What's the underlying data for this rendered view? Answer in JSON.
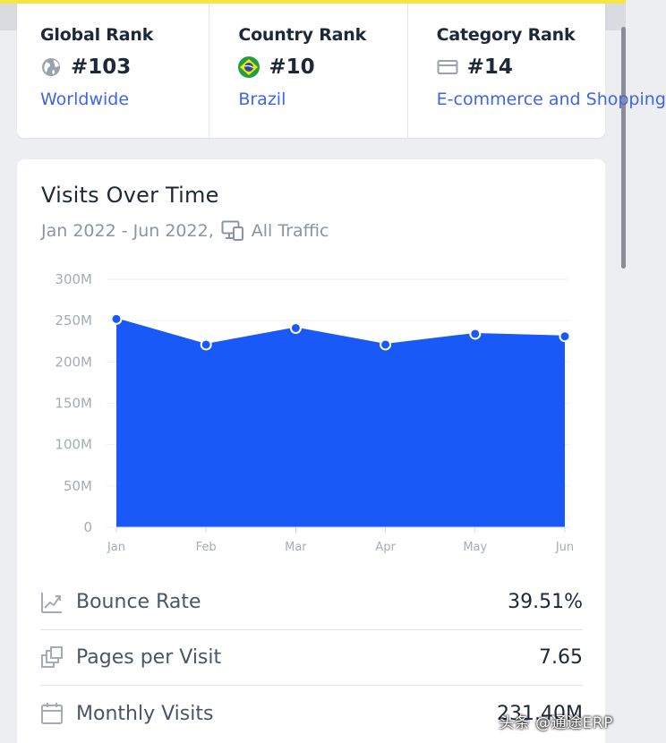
{
  "colors": {
    "accent": "#f5e642",
    "chart_fill": "#1859f7",
    "link": "#3e64f0"
  },
  "ranks": [
    {
      "title": "Global Rank",
      "icon": "globe-icon",
      "value": "#103",
      "link": "Worldwide"
    },
    {
      "title": "Country Rank",
      "icon": "brazil-flag-icon",
      "value": "#10",
      "link": "Brazil"
    },
    {
      "title": "Category Rank",
      "icon": "category-icon",
      "value": "#14",
      "link": "E-commerce and Shopping"
    }
  ],
  "visits": {
    "title": "Visits Over Time",
    "date_range": "Jan 2022 - Jun 2022,",
    "traffic_type": "All Traffic"
  },
  "chart_data": {
    "type": "area",
    "title": "Visits Over Time",
    "categories": [
      "Jan",
      "Feb",
      "Mar",
      "Apr",
      "May",
      "Jun"
    ],
    "values": [
      252,
      221,
      241,
      221,
      234,
      231
    ],
    "unit": "M",
    "y_ticks": [
      "0",
      "50M",
      "100M",
      "150M",
      "200M",
      "250M",
      "300M"
    ],
    "ylim": [
      0,
      300
    ],
    "grid": true,
    "legend": "none"
  },
  "metrics": [
    {
      "label": "Bounce Rate",
      "icon": "trend-icon",
      "value": "39.51%"
    },
    {
      "label": "Pages per Visit",
      "icon": "pages-icon",
      "value": "7.65"
    },
    {
      "label": "Monthly Visits",
      "icon": "calendar-icon",
      "value": "231.40M"
    }
  ],
  "watermark": "头条 @通途ERP"
}
